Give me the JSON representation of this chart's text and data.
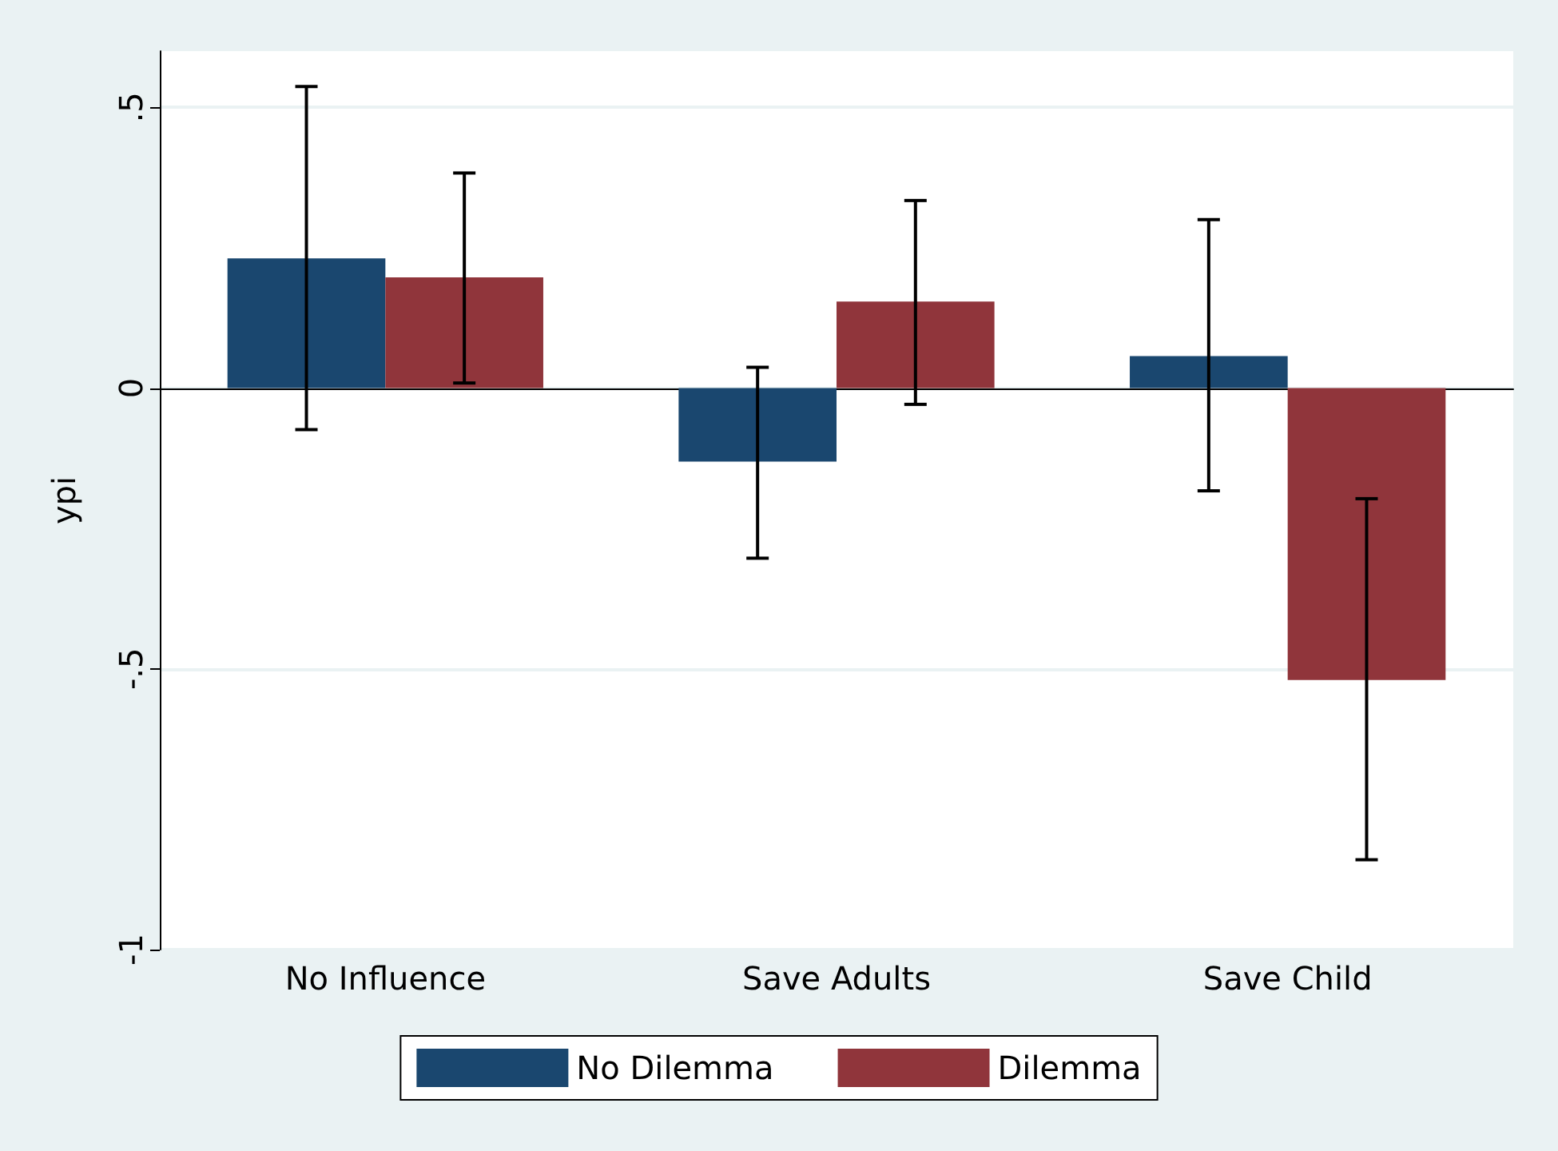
{
  "chart_data": {
    "type": "bar",
    "ylabel": "ypi",
    "categories": [
      "No Influence",
      "Save Adults",
      "Save Child"
    ],
    "series": [
      {
        "name": "No Dilemma",
        "color": "#1a476f",
        "values": [
          0.231,
          -0.131,
          0.057
        ],
        "errors": [
          [
            -0.074,
            0.537
          ],
          [
            -0.303,
            0.037
          ],
          [
            -0.183,
            0.3
          ]
        ]
      },
      {
        "name": "Dilemma",
        "color": "#90353b",
        "values": [
          0.197,
          0.154,
          -0.52
        ],
        "errors": [
          [
            0.009,
            0.383
          ],
          [
            -0.029,
            0.334
          ],
          [
            -0.84,
            -0.197
          ]
        ]
      }
    ],
    "ylim": [
      -1,
      0.6
    ],
    "yticks": [
      {
        "value": -1,
        "label": "-1"
      },
      {
        "value": -0.5,
        "label": "-.5"
      },
      {
        "value": 0,
        "label": "0"
      },
      {
        "value": 0.5,
        "label": ".5"
      }
    ],
    "grid": "y",
    "legend": "bottom"
  }
}
